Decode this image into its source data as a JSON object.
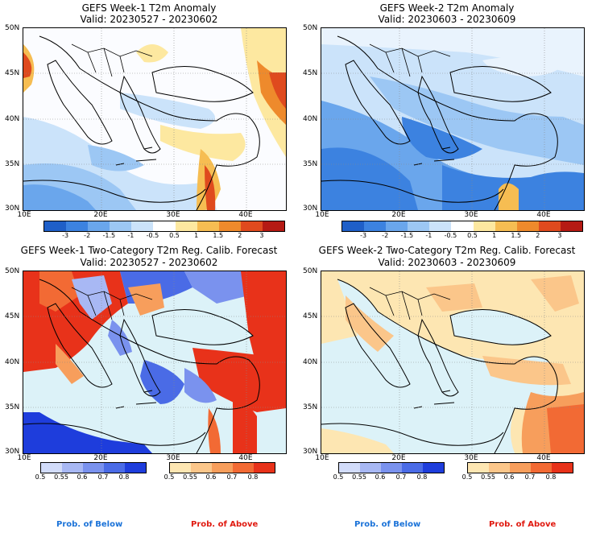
{
  "panels": [
    {
      "title": "GEFS Week-1 T2m Anomaly",
      "valid": "Valid: 20230527 - 20230602"
    },
    {
      "title": "GEFS Week-2 T2m Anomaly",
      "valid": "Valid: 20230603 - 20230609"
    },
    {
      "title": "GEFS Week-1 Two-Category T2m Reg. Calib. Forecast",
      "valid": "Valid: 20230527 - 20230602"
    },
    {
      "title": "GEFS Week-2 Two-Category T2m Reg. Calib. Forecast",
      "valid": "Valid: 20230603 - 20230609"
    }
  ],
  "axes": {
    "lat_labels": [
      "50N",
      "45N",
      "40N",
      "35N",
      "30N"
    ],
    "lon_labels": [
      "10E",
      "20E",
      "30E",
      "40E"
    ]
  },
  "anomaly_colorbar": {
    "ticks": [
      "-3",
      "-2",
      "-1.5",
      "-1",
      "-0.5",
      "0.5",
      "1",
      "1.5",
      "2",
      "3"
    ],
    "colors": [
      "#1f5fc8",
      "#3c82e0",
      "#6aa6ec",
      "#9cc7f4",
      "#cbe3fa",
      "#ffffff",
      "#fde8a0",
      "#f6bd52",
      "#ee8a2c",
      "#df4a1e",
      "#b51a14"
    ]
  },
  "prob_colorbar": {
    "below_ticks": [
      "0.5",
      "0.55",
      "0.6",
      "0.7",
      "0.8"
    ],
    "above_ticks": [
      "0.5",
      "0.55",
      "0.6",
      "0.7",
      "0.8"
    ],
    "below_colors": [
      "#d2dcfa",
      "#a8b8f4",
      "#7a92ee",
      "#4a6be6",
      "#1e3ddc"
    ],
    "above_colors": [
      "#fde6b2",
      "#fbc68a",
      "#f79e5c",
      "#f26a34",
      "#e8321a"
    ]
  },
  "legend": {
    "below": "Prob. of Below",
    "above": "Prob. of Above"
  }
}
